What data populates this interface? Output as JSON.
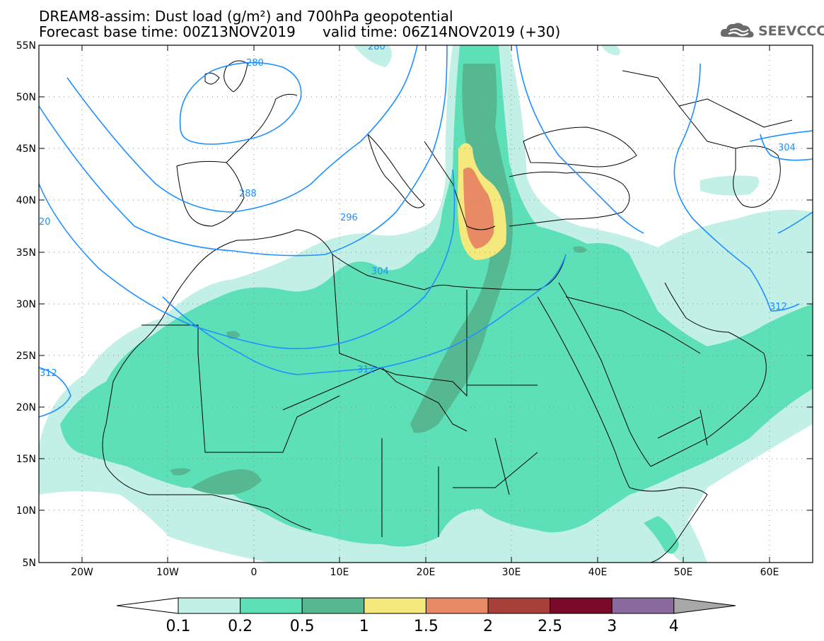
{
  "title": {
    "line1": "DREAM8-assim: Dust load (g/m²) and 700hPa geopotential",
    "line2_left": "Forecast base time: 00Z13NOV2019",
    "line2_right": "valid time: 06Z14NOV2019 (+30)"
  },
  "logo": {
    "text": "SEEVCCC",
    "icon": "cloud-icon",
    "color": "#6a6a6a"
  },
  "map": {
    "lat_labels": [
      "55N",
      "50N",
      "45N",
      "40N",
      "35N",
      "30N",
      "25N",
      "20N",
      "15N",
      "10N",
      "5N"
    ],
    "lon_labels": [
      "20W",
      "10W",
      "0",
      "10E",
      "20E",
      "30E",
      "40E",
      "50E",
      "60E"
    ],
    "lat_range": [
      5,
      55
    ],
    "lon_range": [
      -25,
      65
    ],
    "grid": "dotted",
    "contour_color": "#1e90ff",
    "contour_labels": [
      "280",
      "280",
      "288",
      "296",
      "304",
      "304",
      "312",
      "312",
      "312",
      "20"
    ]
  },
  "colorbar": {
    "levels": [
      "0.1",
      "0.2",
      "0.5",
      "1",
      "1.5",
      "2",
      "2.5",
      "3",
      "4"
    ],
    "colors": [
      "#ffffff",
      "#c2efe6",
      "#5de0b7",
      "#55b890",
      "#f5e97e",
      "#e88a63",
      "#a7403a",
      "#7a0a2a",
      "#8a6a9e",
      "#a8a8a8"
    ]
  }
}
